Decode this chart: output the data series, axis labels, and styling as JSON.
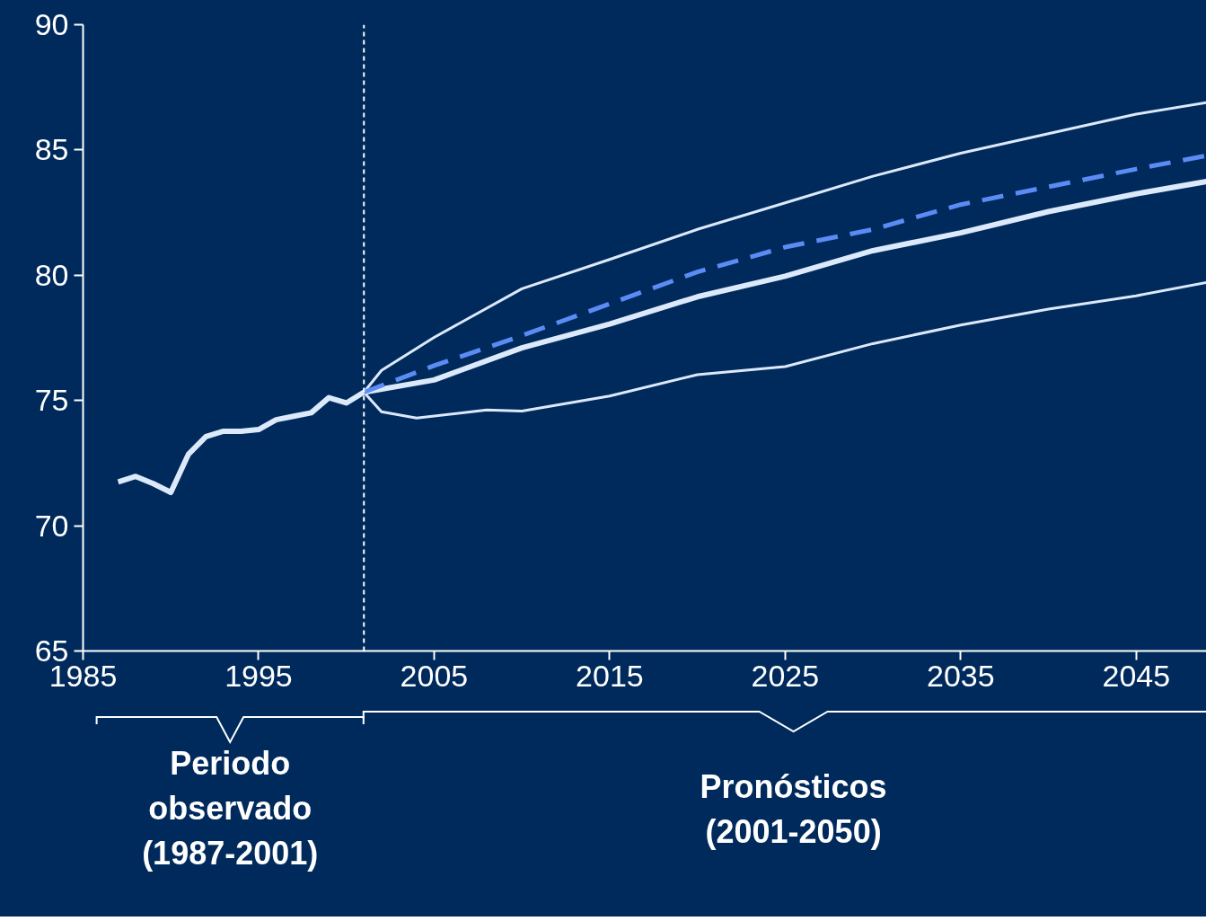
{
  "chart_data": {
    "type": "line",
    "xlim": [
      1985,
      2049
    ],
    "ylim": [
      65,
      90
    ],
    "xticks": [
      1985,
      1995,
      2005,
      2015,
      2025,
      2035,
      2045
    ],
    "yticks": [
      65,
      70,
      75,
      80,
      85,
      90
    ],
    "grid": false,
    "marker": "none",
    "series": [
      {
        "color": "#dce9fa",
        "x": [
          1987,
          1988,
          1989,
          1990,
          1991,
          1992,
          1993,
          1994,
          1995,
          1996,
          1997,
          1998,
          1999,
          2000,
          2001,
          2005,
          2010,
          2015,
          2020,
          2025,
          2030,
          2035,
          2040,
          2045,
          2049
        ],
        "values": [
          71.75,
          71.97,
          71.68,
          71.33,
          72.85,
          73.56,
          73.77,
          73.77,
          73.84,
          74.23,
          74.37,
          74.51,
          75.11,
          74.9,
          75.33,
          75.82,
          77.1,
          78.05,
          79.14,
          79.96,
          80.98,
          81.69,
          82.54,
          83.25,
          83.74
        ]
      },
      {
        "color": "#dce9fa",
        "x": [
          2001,
          2002,
          2005,
          2010,
          2015,
          2020,
          2025,
          2030,
          2035,
          2040,
          2045,
          2049
        ],
        "values": [
          75.33,
          76.2,
          77.52,
          79.46,
          80.63,
          81.83,
          82.89,
          83.95,
          84.87,
          85.65,
          86.43,
          86.89
        ]
      },
      {
        "color": "#dce9fa",
        "x": [
          2001,
          2002,
          2004,
          2008,
          2010,
          2015,
          2020,
          2025,
          2030,
          2035,
          2040,
          2045,
          2049
        ],
        "values": [
          75.33,
          74.55,
          74.3,
          74.62,
          74.58,
          75.18,
          76.03,
          76.35,
          77.27,
          78.01,
          78.65,
          79.18,
          79.71
        ]
      },
      {
        "color": "#5b8cf5",
        "line_style": "dashed",
        "x": [
          2001,
          2005,
          2010,
          2015,
          2020,
          2025,
          2030,
          2035,
          2040,
          2045,
          2049
        ],
        "values": [
          75.33,
          76.39,
          77.59,
          78.86,
          80.13,
          81.12,
          81.83,
          82.82,
          83.53,
          84.24,
          84.77
        ]
      }
    ],
    "ref_lines": [
      {
        "axis": "x",
        "value": 2001,
        "color": "#ffffff",
        "line_style": "dashed"
      }
    ],
    "annotations": [
      "Periodo observado (1987-2001)",
      "Pronósticos (2001-2050)"
    ]
  }
}
